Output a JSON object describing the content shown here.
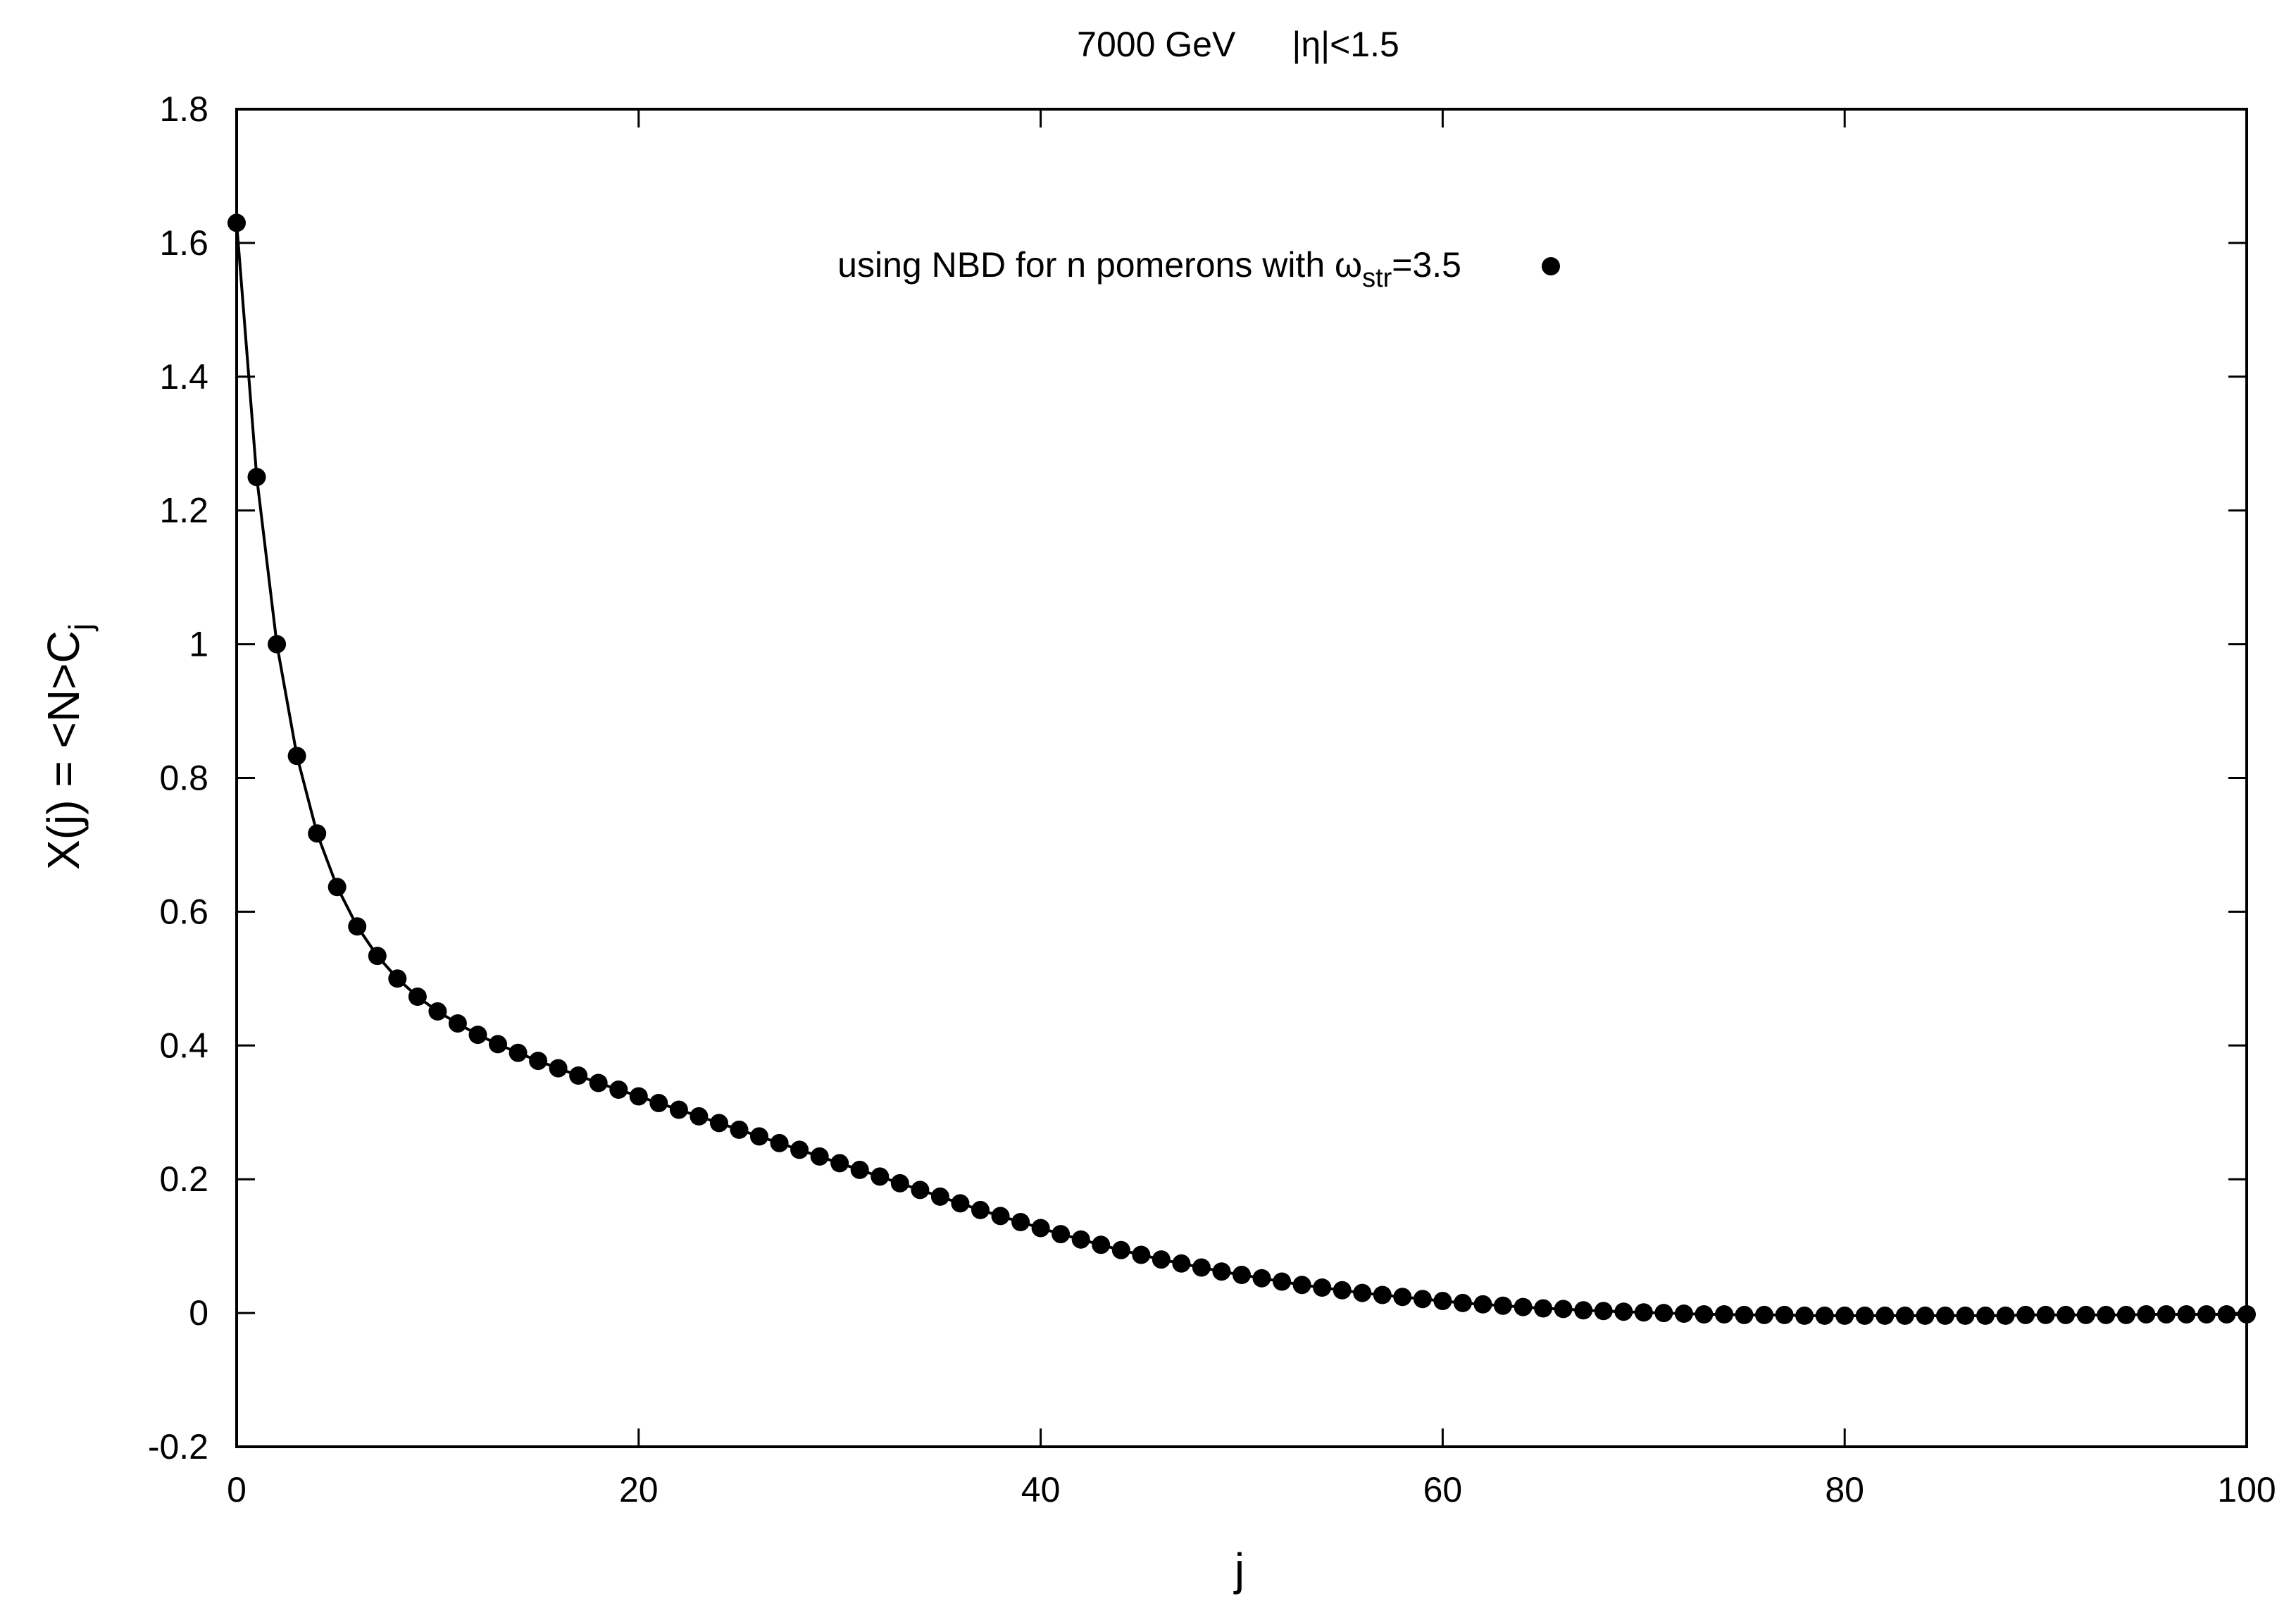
{
  "chart_data": {
    "type": "scatter",
    "title_parts": [
      "7000 GeV",
      "|η|<1.5"
    ],
    "xlabel": "j",
    "ylabel_parts": [
      "X(j) = <N>C",
      "j"
    ],
    "xlim": [
      0,
      100
    ],
    "ylim": [
      -0.2,
      1.8
    ],
    "xticks": [
      0,
      20,
      40,
      60,
      80,
      100
    ],
    "yticks": [
      -0.2,
      0,
      0.2,
      0.4,
      0.6,
      0.8,
      1,
      1.2,
      1.4,
      1.6,
      1.8
    ],
    "xtick_labels": [
      "0",
      "20",
      "40",
      "60",
      "80",
      "100"
    ],
    "ytick_labels": [
      "-0.2",
      "0",
      "0.2",
      "0.4",
      "0.6",
      "0.8",
      "1",
      "1.2",
      "1.4",
      "1.6",
      "1.8"
    ],
    "grid": false,
    "legend_position": "top-center",
    "legend_parts": [
      "using NBD for n pomerons with ω",
      "str",
      "=3.5"
    ],
    "marker_color": "#000000",
    "line_color": "#000000",
    "series": [
      {
        "x": [
          0,
          1,
          2,
          3,
          4,
          5,
          6,
          7,
          8,
          9,
          10,
          11,
          12,
          13,
          14,
          15,
          16,
          17,
          18,
          19,
          20,
          21,
          22,
          23,
          24,
          25,
          26,
          27,
          28,
          29,
          30,
          31,
          32,
          33,
          34,
          35,
          36,
          37,
          38,
          39,
          40,
          41,
          42,
          43,
          44,
          45,
          46,
          47,
          48,
          49,
          50,
          51,
          52,
          53,
          54,
          55,
          56,
          57,
          58,
          59,
          60,
          61,
          62,
          63,
          64,
          65,
          66,
          67,
          68,
          69,
          70,
          71,
          72,
          73,
          74,
          75,
          76,
          77,
          78,
          79,
          80,
          81,
          82,
          83,
          84,
          85,
          86,
          87,
          88,
          89,
          90,
          91,
          92,
          93,
          94,
          95,
          96,
          97,
          98,
          99,
          100
        ],
        "y": [
          1.63,
          1.25,
          1.0,
          0.833,
          0.717,
          0.637,
          0.578,
          0.534,
          0.5,
          0.473,
          0.451,
          0.433,
          0.416,
          0.402,
          0.389,
          0.377,
          0.366,
          0.355,
          0.344,
          0.334,
          0.324,
          0.314,
          0.304,
          0.294,
          0.284,
          0.274,
          0.264,
          0.254,
          0.244,
          0.234,
          0.224,
          0.214,
          0.204,
          0.194,
          0.184,
          0.174,
          0.164,
          0.154,
          0.145,
          0.136,
          0.127,
          0.118,
          0.11,
          0.102,
          0.094,
          0.087,
          0.08,
          0.074,
          0.068,
          0.062,
          0.057,
          0.052,
          0.047,
          0.042,
          0.038,
          0.034,
          0.03,
          0.027,
          0.024,
          0.021,
          0.018,
          0.015,
          0.013,
          0.011,
          0.009,
          0.007,
          0.006,
          0.004,
          0.003,
          0.002,
          0.001,
          0.0,
          -0.001,
          -0.002,
          -0.002,
          -0.003,
          -0.003,
          -0.003,
          -0.004,
          -0.004,
          -0.004,
          -0.004,
          -0.004,
          -0.004,
          -0.004,
          -0.004,
          -0.004,
          -0.004,
          -0.004,
          -0.003,
          -0.003,
          -0.003,
          -0.003,
          -0.003,
          -0.003,
          -0.002,
          -0.002,
          -0.002,
          -0.002,
          -0.002,
          -0.002
        ]
      }
    ]
  }
}
